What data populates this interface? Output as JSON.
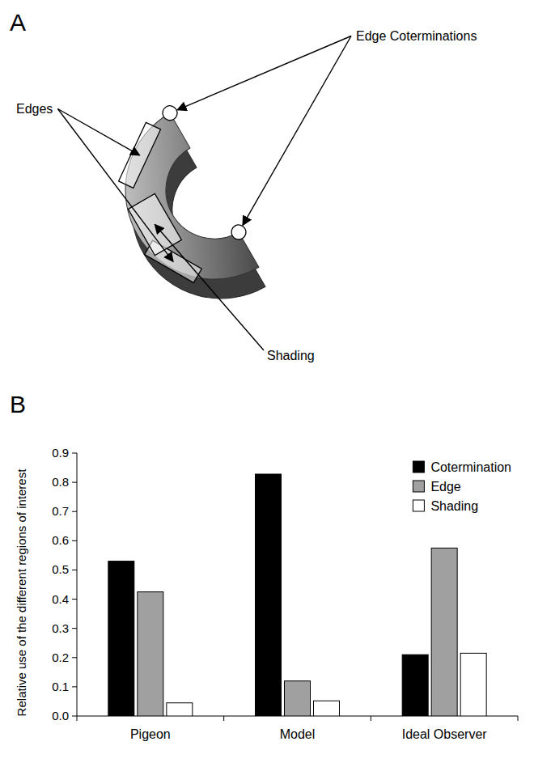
{
  "panel_labels": [
    "A",
    "B"
  ],
  "diagram": {
    "edges": "Edges",
    "coterminations": "Edge Coterminations",
    "shading": "Shading"
  },
  "chart_data": {
    "type": "bar",
    "categories": [
      "Pigeon",
      "Model",
      "Ideal Observer"
    ],
    "ylabel": "Relative use of the different regions of interest",
    "series": [
      {
        "name": "Cotermination",
        "color": "#000000",
        "values": [
          0.53,
          0.828,
          0.21
        ]
      },
      {
        "name": "Edge",
        "color": "#a0a0a0",
        "values": [
          0.425,
          0.12,
          0.575
        ]
      },
      {
        "name": "Shading",
        "color": "#ffffff",
        "values": [
          0.045,
          0.052,
          0.215
        ]
      }
    ],
    "ylim": [
      0,
      0.9
    ],
    "yticks": [
      {
        "value": 0,
        "label": "0.0"
      },
      0.1,
      0.2,
      0.3,
      0.4,
      0.5,
      0.6,
      0.7,
      0.8,
      0.9
    ],
    "grid": false,
    "legend": "top-right"
  }
}
